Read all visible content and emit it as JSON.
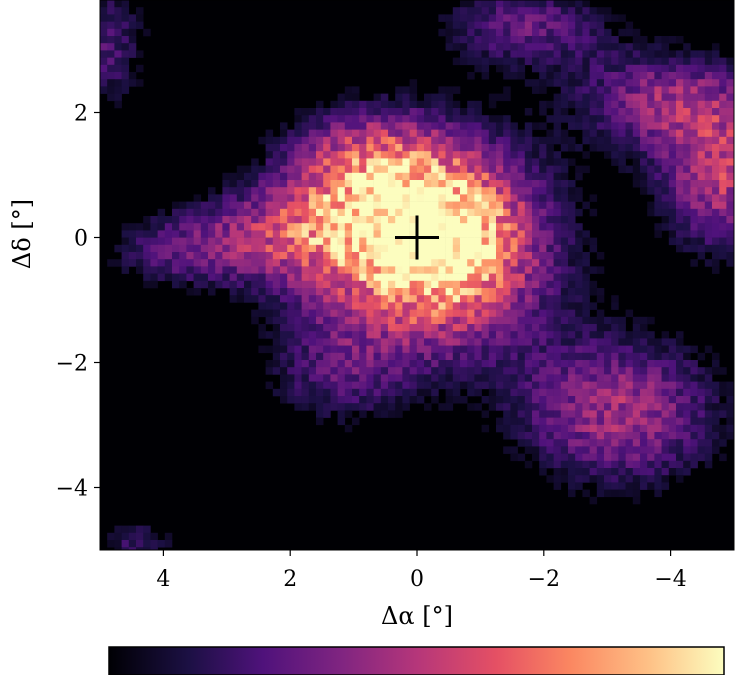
{
  "chart_data": {
    "type": "heatmap",
    "title": "",
    "xlabel": "Δα [°]",
    "ylabel": "Δδ [°]",
    "xlim": [
      5,
      -5
    ],
    "ylim": [
      -5,
      3.8
    ],
    "x_ticks": [
      4,
      2,
      0,
      -2,
      -4
    ],
    "x_tick_labels": [
      "4",
      "2",
      "0",
      "−2",
      "−4"
    ],
    "y_ticks": [
      2,
      0,
      -2,
      -4
    ],
    "y_tick_labels": [
      "2",
      "0",
      "−2",
      "−4"
    ],
    "colormap": "magma",
    "colorbar": "horizontal-bottom",
    "grid": false,
    "marker": {
      "type": "plus",
      "x": 0,
      "y": 0,
      "color": "#000000"
    },
    "blobs": [
      {
        "x": 0.0,
        "y": -0.1,
        "sx": 1.45,
        "sy": 1.2,
        "amp": 1.0
      },
      {
        "x": -0.6,
        "y": 0.0,
        "sx": 0.7,
        "sy": 0.8,
        "amp": 0.35
      },
      {
        "x": 0.8,
        "y": 1.2,
        "sx": 0.9,
        "sy": 0.6,
        "amp": 0.4
      },
      {
        "x": 2.2,
        "y": 0.1,
        "sx": 1.4,
        "sy": 0.5,
        "amp": 0.35
      },
      {
        "x": 3.8,
        "y": -0.3,
        "sx": 0.9,
        "sy": 0.4,
        "amp": 0.25
      },
      {
        "x": 1.3,
        "y": -2.3,
        "sx": 0.9,
        "sy": 0.6,
        "amp": 0.25
      },
      {
        "x": -3.2,
        "y": -2.8,
        "sx": 1.2,
        "sy": 0.9,
        "amp": 0.55
      },
      {
        "x": -4.8,
        "y": 1.0,
        "sx": 0.7,
        "sy": 0.9,
        "amp": 0.6
      },
      {
        "x": -3.8,
        "y": 2.2,
        "sx": 1.0,
        "sy": 0.6,
        "amp": 0.45
      },
      {
        "x": -1.7,
        "y": 3.4,
        "sx": 1.0,
        "sy": 0.5,
        "amp": 0.4
      },
      {
        "x": 4.9,
        "y": 3.1,
        "sx": 0.5,
        "sy": 0.8,
        "amp": 0.35
      },
      {
        "x": 4.4,
        "y": -4.9,
        "sx": 0.5,
        "sy": 0.3,
        "amp": 0.3
      }
    ]
  }
}
